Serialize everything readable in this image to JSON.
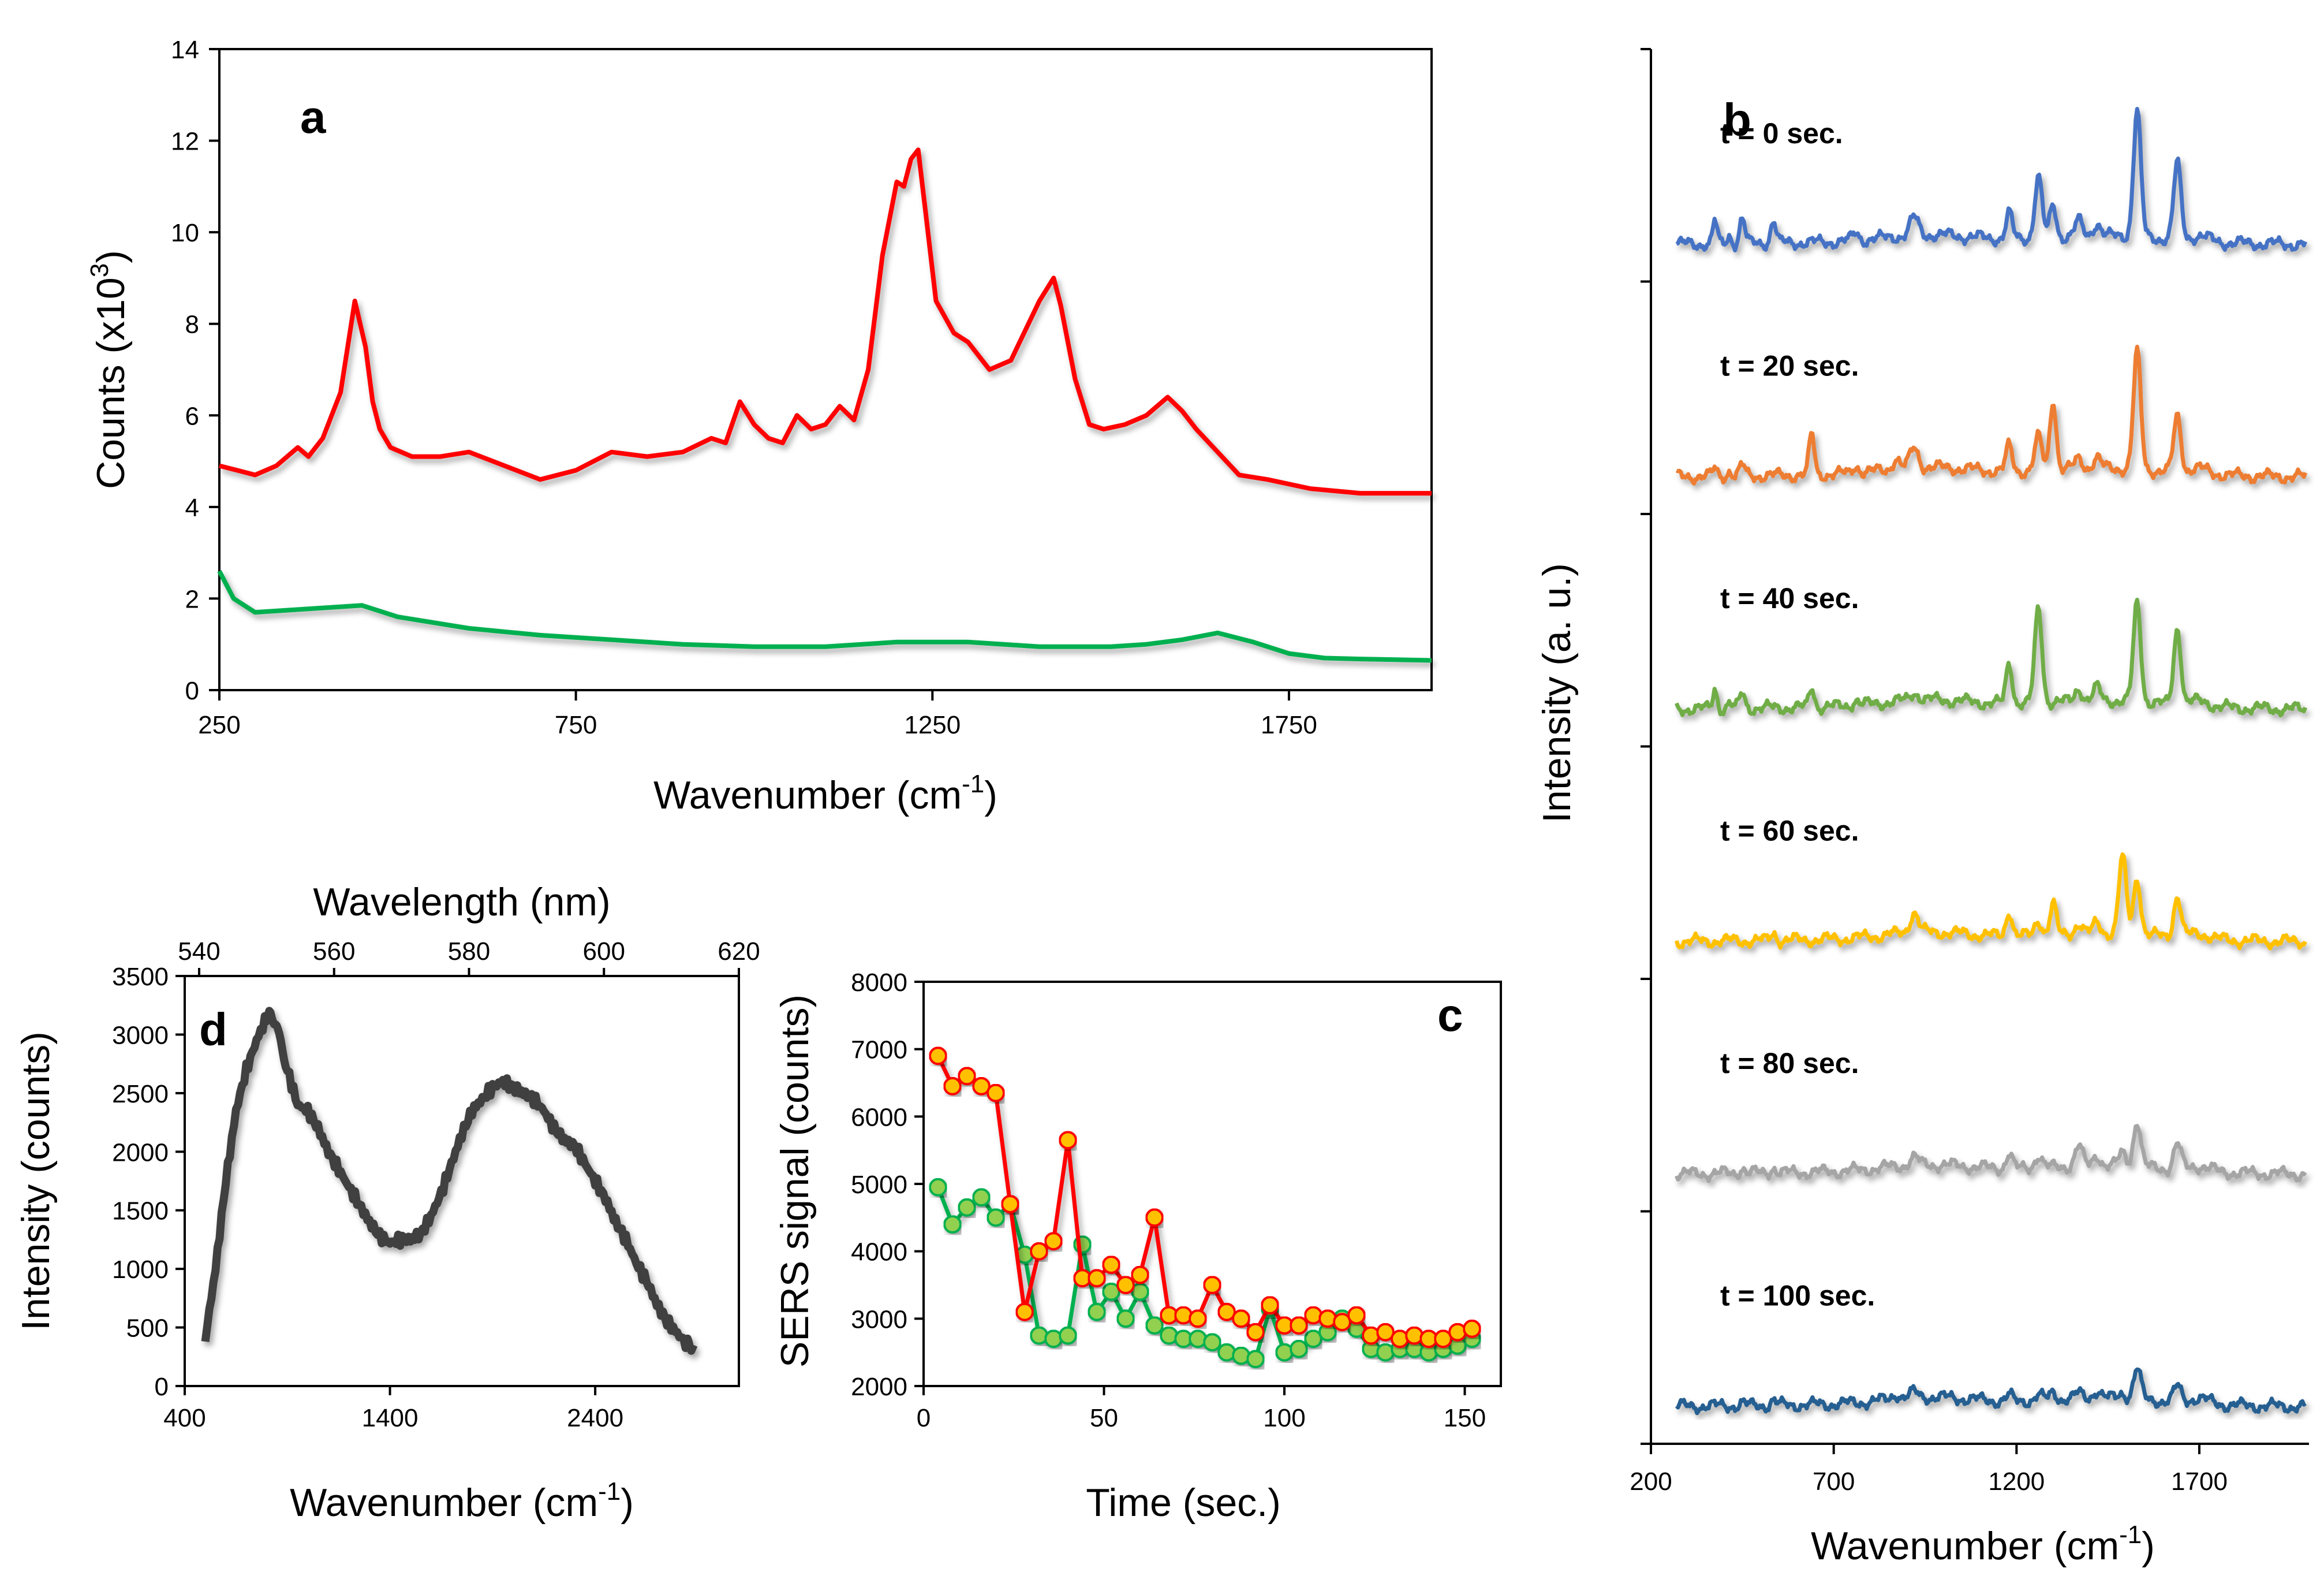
{
  "chart_data": [
    {
      "panel": "a",
      "type": "line",
      "xlabel": "Wavenumber (cm⁻¹)",
      "ylabel": "Counts (x10³)",
      "xlim": [
        250,
        1950
      ],
      "ylim": [
        0,
        14
      ],
      "xticks": [
        250,
        750,
        1250,
        1750
      ],
      "yticks": [
        0,
        2,
        4,
        6,
        8,
        10,
        12,
        14
      ],
      "series": [
        {
          "name": "red",
          "color": "#ff0000",
          "x": [
            250,
            275,
            300,
            330,
            360,
            375,
            395,
            420,
            440,
            455,
            465,
            475,
            490,
            520,
            560,
            600,
            650,
            700,
            750,
            800,
            850,
            900,
            940,
            960,
            980,
            1000,
            1020,
            1040,
            1060,
            1080,
            1100,
            1120,
            1140,
            1160,
            1180,
            1200,
            1210,
            1220,
            1230,
            1240,
            1255,
            1280,
            1300,
            1330,
            1360,
            1400,
            1420,
            1430,
            1450,
            1470,
            1490,
            1520,
            1550,
            1580,
            1600,
            1620,
            1650,
            1680,
            1720,
            1780,
            1850,
            1950
          ],
          "y": [
            4.9,
            4.8,
            4.7,
            4.9,
            5.3,
            5.1,
            5.5,
            6.5,
            8.5,
            7.5,
            6.3,
            5.7,
            5.3,
            5.1,
            5.1,
            5.2,
            4.9,
            4.6,
            4.8,
            5.2,
            5.1,
            5.2,
            5.5,
            5.4,
            6.3,
            5.8,
            5.5,
            5.4,
            6.0,
            5.7,
            5.8,
            6.2,
            5.9,
            7.0,
            9.5,
            11.1,
            11.0,
            11.6,
            11.8,
            10.5,
            8.5,
            7.8,
            7.6,
            7.0,
            7.2,
            8.5,
            9.0,
            8.4,
            6.8,
            5.8,
            5.7,
            5.8,
            6.0,
            6.4,
            6.1,
            5.7,
            5.2,
            4.7,
            4.6,
            4.4,
            4.3,
            4.3
          ]
        },
        {
          "name": "green",
          "color": "#00b050",
          "x": [
            250,
            270,
            300,
            350,
            400,
            450,
            500,
            600,
            700,
            800,
            900,
            1000,
            1100,
            1200,
            1300,
            1400,
            1500,
            1550,
            1600,
            1650,
            1700,
            1750,
            1800,
            1850,
            1950
          ],
          "y": [
            2.6,
            2.0,
            1.7,
            1.75,
            1.8,
            1.85,
            1.6,
            1.35,
            1.2,
            1.1,
            1.0,
            0.95,
            0.95,
            1.05,
            1.05,
            0.95,
            0.95,
            1.0,
            1.1,
            1.25,
            1.05,
            0.8,
            0.7,
            0.68,
            0.65
          ]
        }
      ]
    },
    {
      "panel": "b",
      "type": "line",
      "xlabel": "Wavenumber (cm⁻¹)",
      "ylabel": "Intensity (a. u.)",
      "xlim": [
        200,
        2000
      ],
      "xticks": [
        200,
        700,
        1200,
        1700
      ],
      "peaks": [
        {
          "pos": 375,
          "w": 8
        },
        {
          "pos": 415,
          "w": 8
        },
        {
          "pos": 450,
          "w": 10
        },
        {
          "pos": 535,
          "w": 10
        },
        {
          "pos": 640,
          "w": 10
        },
        {
          "pos": 760,
          "w": 12
        },
        {
          "pos": 870,
          "w": 14
        },
        {
          "pos": 920,
          "w": 16
        },
        {
          "pos": 1180,
          "w": 12
        },
        {
          "pos": 1260,
          "w": 14
        },
        {
          "pos": 1300,
          "w": 12
        },
        {
          "pos": 1370,
          "w": 14
        },
        {
          "pos": 1420,
          "w": 14
        },
        {
          "pos": 1490,
          "w": 14
        },
        {
          "pos": 1530,
          "w": 14
        },
        {
          "pos": 1600,
          "w": 18
        },
        {
          "pos": 1640,
          "w": 14
        },
        {
          "pos": 1700,
          "w": 40
        }
      ],
      "series": [
        {
          "name": "t = 0 sec.",
          "color": "#4472c4",
          "amps": [
            0.9,
            0.3,
            1.0,
            0.9,
            0,
            0.3,
            0,
            0.7,
            1.0,
            2.4,
            1.3,
            0.6,
            0.5,
            0,
            5.0,
            0,
            3.0,
            0.2
          ]
        },
        {
          "name": "t = 20 sec.",
          "color": "#ed7d31",
          "amps": [
            0.3,
            0.2,
            0.4,
            0,
            1.6,
            0.3,
            0.4,
            0.8,
            1.0,
            1.3,
            2.8,
            0.4,
            0.4,
            0,
            4.6,
            0,
            2.2,
            0.2
          ]
        },
        {
          "name": "t = 40 sec.",
          "color": "#70ad47",
          "amps": [
            0.8,
            0.2,
            0.6,
            0,
            0.8,
            0.2,
            0,
            0.3,
            1.6,
            3.7,
            0,
            0.5,
            0.5,
            0,
            3.9,
            0,
            3.0,
            0.2
          ]
        },
        {
          "name": "t = 60 sec.",
          "color": "#ffc000",
          "amps": [
            0,
            0,
            0,
            0.3,
            0,
            0,
            0,
            0.8,
            1.0,
            0.6,
            1.2,
            0.4,
            0.4,
            3.0,
            2.2,
            0,
            1.6,
            0.2
          ]
        },
        {
          "name": "t = 80 sec.",
          "color": "#a5a5a5",
          "amps": [
            0,
            0,
            0.2,
            0.2,
            0,
            0,
            0,
            0.3,
            0.6,
            0.5,
            0,
            0.8,
            0.4,
            0.5,
            1.8,
            0,
            1.0,
            0.2
          ]
        },
        {
          "name": "t = 100 sec.",
          "color": "#255e91",
          "amps": [
            0,
            0,
            0.1,
            0.2,
            0,
            0,
            0.2,
            0.2,
            0.2,
            0.2,
            0.3,
            0.2,
            0.3,
            0.2,
            1.2,
            0,
            0.6,
            0.2
          ]
        }
      ]
    },
    {
      "panel": "c",
      "type": "scatter",
      "xlabel": "Time (sec.)",
      "ylabel": "SERS signal (counts)",
      "xlim": [
        0,
        160
      ],
      "ylim": [
        2000,
        8000
      ],
      "xticks": [
        0,
        50,
        100,
        150
      ],
      "yticks": [
        2000,
        3000,
        4000,
        5000,
        6000,
        7000,
        8000
      ],
      "x": [
        4,
        8,
        12,
        16,
        20,
        24,
        28,
        32,
        36,
        40,
        44,
        48,
        52,
        56,
        60,
        64,
        68,
        72,
        76,
        80,
        84,
        88,
        92,
        96,
        100,
        104,
        108,
        112,
        116,
        120,
        124,
        128,
        132,
        136,
        140,
        144,
        148,
        152
      ],
      "series": [
        {
          "name": "red",
          "color": "#ff0000",
          "marker": "#ffc000",
          "values": [
            6900,
            6450,
            6600,
            6450,
            6350,
            4700,
            3100,
            4000,
            4150,
            5650,
            3600,
            3600,
            3800,
            3500,
            3650,
            4500,
            3050,
            3050,
            3000,
            3500,
            3100,
            3000,
            2800,
            3200,
            2900,
            2900,
            3050,
            3000,
            2950,
            3050,
            2750,
            2800,
            2700,
            2750,
            2700,
            2700,
            2800,
            2850
          ]
        },
        {
          "name": "green",
          "color": "#00b050",
          "marker": "#92d050",
          "values": [
            4950,
            4400,
            4650,
            4800,
            4500,
            4700,
            3950,
            2750,
            2700,
            2750,
            4100,
            3100,
            3400,
            3000,
            3400,
            2900,
            2750,
            2700,
            2700,
            2650,
            2500,
            2450,
            2400,
            3150,
            2500,
            2550,
            2700,
            2800,
            3000,
            2850,
            2550,
            2500,
            2550,
            2550,
            2500,
            2550,
            2600,
            2700
          ]
        }
      ]
    },
    {
      "panel": "d",
      "type": "line",
      "xlabel": "Wavenumber (cm⁻¹)",
      "ylabel": "Intensity (counts)",
      "x2label": "Wavelength (nm)",
      "xlim": [
        400,
        3100
      ],
      "ylim": [
        0,
        3500
      ],
      "xticks": [
        400,
        1400,
        2400
      ],
      "yticks": [
        0,
        500,
        1000,
        1500,
        2000,
        2500,
        3000,
        3500
      ],
      "x2ticks": [
        540,
        560,
        580,
        600,
        620
      ],
      "series": [
        {
          "name": "spectrum",
          "color": "#404040",
          "x": [
            500,
            550,
            600,
            650,
            700,
            750,
            800,
            830,
            860,
            900,
            950,
            1000,
            1050,
            1100,
            1150,
            1200,
            1250,
            1300,
            1350,
            1400,
            1450,
            1500,
            1550,
            1600,
            1650,
            1700,
            1750,
            1800,
            1850,
            1900,
            1950,
            2000,
            2050,
            2100,
            2150,
            2200,
            2250,
            2300,
            2350,
            2400,
            2450,
            2500,
            2550,
            2600,
            2650,
            2700,
            2750,
            2800,
            2850,
            2880
          ],
          "y": [
            400,
            1000,
            1750,
            2350,
            2700,
            2950,
            3150,
            3150,
            3000,
            2700,
            2400,
            2350,
            2200,
            2000,
            1850,
            1700,
            1550,
            1400,
            1280,
            1220,
            1250,
            1250,
            1300,
            1450,
            1650,
            1900,
            2150,
            2350,
            2450,
            2550,
            2600,
            2550,
            2500,
            2450,
            2350,
            2200,
            2100,
            2050,
            1900,
            1750,
            1600,
            1400,
            1250,
            1050,
            900,
            700,
            550,
            450,
            350,
            350
          ]
        }
      ]
    }
  ],
  "labels": {
    "panel_a": "a",
    "panel_b": "b",
    "panel_c": "c",
    "panel_d": "d",
    "a_xlabel_main": "Wavenumber (cm",
    "a_xlabel_sup": "-1",
    "a_xlabel_end": ")",
    "a_ylabel_main": "Counts (x10",
    "a_ylabel_sup": "3",
    "a_ylabel_end": ")",
    "b_xlabel_main": "Wavenumber (cm",
    "b_xlabel_sup": "-1",
    "b_xlabel_end": ")",
    "b_ylabel": "Intensity (a. u.)",
    "c_xlabel": "Time (sec.)",
    "c_ylabel": "SERS signal (counts)",
    "d_xlabel_main": "Wavenumber (cm",
    "d_xlabel_sup": "-1",
    "d_xlabel_end": ")",
    "d_ylabel": "Intensity (counts)",
    "d_x2label": "Wavelength (nm)"
  }
}
